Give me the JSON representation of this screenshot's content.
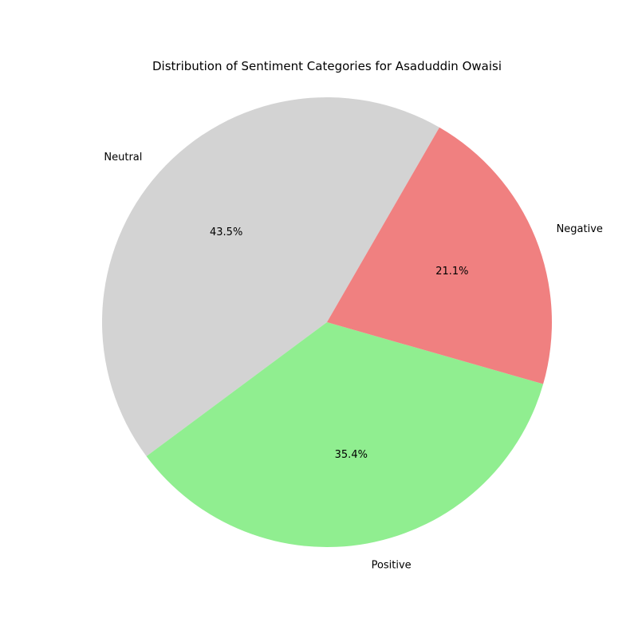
{
  "chart_data": {
    "type": "pie",
    "title": "Distribution of Sentiment Categories for Asaduddin Owaisi",
    "slices": [
      {
        "label": "Neutral",
        "value": 43.5,
        "display": "43.5%",
        "color": "#d3d3d3"
      },
      {
        "label": "Positive",
        "value": 35.4,
        "display": "35.4%",
        "color": "#90ee90"
      },
      {
        "label": "Negative",
        "value": 21.1,
        "display": "21.1%",
        "color": "#f08080"
      }
    ],
    "start_angle_deg": 60,
    "direction": "counterclockwise"
  }
}
